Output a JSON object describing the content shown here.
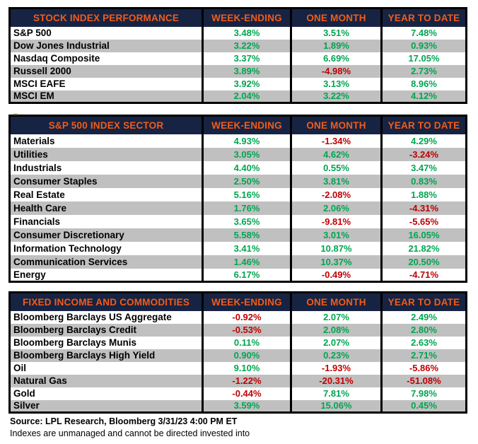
{
  "colors": {
    "header_bg": "#172342",
    "header_text": "#F25C19",
    "positive_value": "#00A651",
    "negative_value": "#C00000",
    "row_stripe": "#C0C0C0",
    "row_bg": "#FFFFFF",
    "border": "#000000"
  },
  "chart_data": [
    {
      "type": "table",
      "title": "STOCK INDEX PERFORMANCE",
      "columns": [
        "WEEK-ENDING",
        "ONE MONTH",
        "YEAR TO DATE"
      ],
      "rows": [
        {
          "label": "S&P 500",
          "values": [
            "3.48%",
            "3.51%",
            "7.48%"
          ]
        },
        {
          "label": "Dow Jones Industrial",
          "values": [
            "3.22%",
            "1.89%",
            "0.93%"
          ]
        },
        {
          "label": "Nasdaq Composite",
          "values": [
            "3.37%",
            "6.69%",
            "17.05%"
          ]
        },
        {
          "label": "Russell 2000",
          "values": [
            "3.89%",
            "-4.98%",
            "2.73%"
          ]
        },
        {
          "label": "MSCI EAFE",
          "values": [
            "3.92%",
            "3.13%",
            "8.96%"
          ]
        },
        {
          "label": "MSCI EM",
          "values": [
            "2.04%",
            "3.22%",
            "4.12%"
          ]
        }
      ]
    },
    {
      "type": "table",
      "title": "S&P 500 INDEX SECTOR",
      "columns": [
        "WEEK-ENDING",
        "ONE MONTH",
        "YEAR TO DATE"
      ],
      "rows": [
        {
          "label": "Materials",
          "values": [
            "4.93%",
            "-1.34%",
            "4.29%"
          ]
        },
        {
          "label": "Utilities",
          "values": [
            "3.05%",
            "4.62%",
            "-3.24%"
          ]
        },
        {
          "label": "Industrials",
          "values": [
            "4.40%",
            "0.55%",
            "3.47%"
          ]
        },
        {
          "label": "Consumer Staples",
          "values": [
            "2.50%",
            "3.81%",
            "0.83%"
          ]
        },
        {
          "label": "Real Estate",
          "values": [
            "5.16%",
            "-2.08%",
            "1.88%"
          ]
        },
        {
          "label": "Health Care",
          "values": [
            "1.76%",
            "2.06%",
            "-4.31%"
          ]
        },
        {
          "label": "Financials",
          "values": [
            "3.65%",
            "-9.81%",
            "-5.65%"
          ]
        },
        {
          "label": "Consumer Discretionary",
          "values": [
            "5.58%",
            "3.01%",
            "16.05%"
          ]
        },
        {
          "label": "Information Technology",
          "values": [
            "3.41%",
            "10.87%",
            "21.82%"
          ]
        },
        {
          "label": "Communication Services",
          "values": [
            "1.46%",
            "10.37%",
            "20.50%"
          ]
        },
        {
          "label": "Energy",
          "values": [
            "6.17%",
            "-0.49%",
            "-4.71%"
          ]
        }
      ]
    },
    {
      "type": "table",
      "title": "FIXED INCOME AND COMMODITIES",
      "columns": [
        "WEEK-ENDING",
        "ONE MONTH",
        "YEAR TO DATE"
      ],
      "rows": [
        {
          "label": "Bloomberg Barclays US Aggregate",
          "values": [
            "-0.92%",
            "2.07%",
            "2.49%"
          ]
        },
        {
          "label": "Bloomberg Barclays Credit",
          "values": [
            "-0.53%",
            "2.08%",
            "2.80%"
          ]
        },
        {
          "label": "Bloomberg Barclays Munis",
          "values": [
            "0.11%",
            "2.07%",
            "2.63%"
          ]
        },
        {
          "label": "Bloomberg Barclays High Yield",
          "values": [
            "0.90%",
            "0.23%",
            "2.71%"
          ]
        },
        {
          "label": "Oil",
          "values": [
            "9.10%",
            "-1.93%",
            "-5.86%"
          ]
        },
        {
          "label": "Natural Gas",
          "values": [
            "-1.22%",
            "-20.31%",
            "-51.08%"
          ]
        },
        {
          "label": "Gold",
          "values": [
            "-0.44%",
            "7.81%",
            "7.98%"
          ]
        },
        {
          "label": "Silver",
          "values": [
            "3.59%",
            "15.06%",
            "0.45%"
          ]
        }
      ]
    }
  ],
  "footer": {
    "source": "Source: LPL Research, Bloomberg 3/31/23 4:00 PM ET",
    "disclaimer": "Indexes are unmanaged and cannot be directed invested into"
  }
}
